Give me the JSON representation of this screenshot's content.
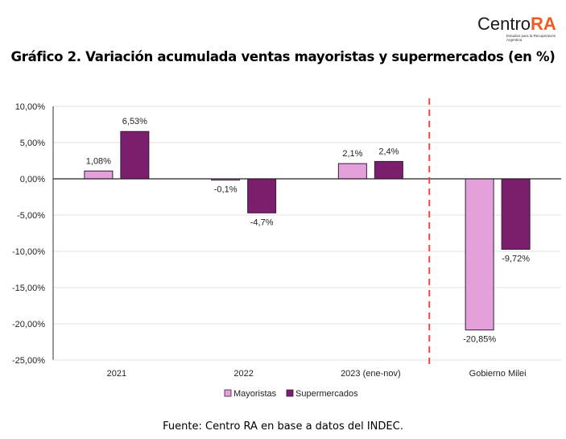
{
  "logo": {
    "name_main": "Centro",
    "name_accent": "RA",
    "subtitle": "Estudios para la Recuperación Argentina"
  },
  "title": "Gráfico 2. Variación acumulada ventas mayoristas y supermercados (en %)",
  "source": "Fuente: Centro RA en base a datos del INDEC.",
  "colors": {
    "mayoristas": "#E3A0DA",
    "supermercados": "#7B1E6E",
    "divider": "#FF4040",
    "grid": "#E0E0E0",
    "axis": "#333333"
  },
  "chart_data": {
    "type": "bar",
    "title": "Gráfico 2. Variación acumulada ventas mayoristas y supermercados (en %)",
    "xlabel": "",
    "ylabel": "",
    "categories": [
      "2021",
      "2022",
      "2023 (ene-nov)",
      "Gobierno Milei"
    ],
    "series": [
      {
        "name": "Mayoristas",
        "values": [
          1.08,
          -0.1,
          2.1,
          -20.85
        ],
        "labels": [
          "1,08%",
          "-0,1%",
          "2,1%",
          "-20,85%"
        ]
      },
      {
        "name": "Supermercados",
        "values": [
          6.53,
          -4.7,
          2.4,
          -9.72
        ],
        "labels": [
          "6,53%",
          "-4,7%",
          "2,4%",
          "-9,72%"
        ]
      }
    ],
    "ylim": [
      -25,
      10
    ],
    "yticks": [
      10,
      5,
      0,
      -5,
      -10,
      -15,
      -20,
      -25
    ],
    "ytick_labels": [
      "10,00%",
      "5,00%",
      "0,00%",
      "-5,00%",
      "-10,00%",
      "-15,00%",
      "-20,00%",
      "-25,00%"
    ],
    "grid": true,
    "legend": "bottom",
    "annotations": [
      {
        "type": "dashed-vertical-line",
        "between": [
          "2023 (ene-nov)",
          "Gobierno Milei"
        ]
      }
    ]
  }
}
